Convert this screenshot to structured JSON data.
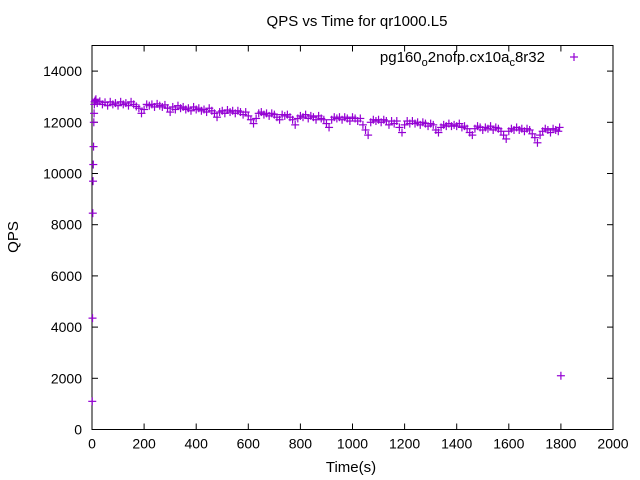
{
  "chart_data": {
    "type": "scatter",
    "title": "QPS vs Time for qr1000.L5",
    "xlabel": "Time(s)",
    "ylabel": "QPS",
    "xlim": [
      0,
      2000
    ],
    "ylim": [
      0,
      15000
    ],
    "xticks": [
      0,
      200,
      400,
      600,
      800,
      1000,
      1200,
      1400,
      1600,
      1800,
      2000
    ],
    "yticks": [
      0,
      2000,
      4000,
      6000,
      8000,
      10000,
      12000,
      14000
    ],
    "grid": false,
    "legend": {
      "placement": "top-right",
      "label_main": "pg160",
      "sub1": "o",
      "mid": "2nofp.cx10a",
      "sub2": "c",
      "tail": "8r32"
    },
    "series": [
      {
        "name": "pg160_o2nofp.cx10a_c8r32",
        "color": "#9400d3",
        "marker": "+",
        "points": [
          [
            1,
            1100
          ],
          [
            2,
            4350
          ],
          [
            3,
            8450
          ],
          [
            4,
            9700
          ],
          [
            5,
            10350
          ],
          [
            6,
            11050
          ],
          [
            7,
            12000
          ],
          [
            8,
            12350
          ],
          [
            9,
            12700
          ],
          [
            10,
            12800
          ],
          [
            12,
            12850
          ],
          [
            15,
            12900
          ],
          [
            20,
            12750
          ],
          [
            30,
            12820
          ],
          [
            40,
            12700
          ],
          [
            50,
            12780
          ],
          [
            60,
            12650
          ],
          [
            70,
            12800
          ],
          [
            80,
            12700
          ],
          [
            90,
            12750
          ],
          [
            100,
            12650
          ],
          [
            110,
            12800
          ],
          [
            120,
            12700
          ],
          [
            130,
            12750
          ],
          [
            140,
            12650
          ],
          [
            150,
            12800
          ],
          [
            160,
            12700
          ],
          [
            170,
            12620
          ],
          [
            180,
            12550
          ],
          [
            190,
            12350
          ],
          [
            200,
            12500
          ],
          [
            210,
            12700
          ],
          [
            220,
            12650
          ],
          [
            230,
            12700
          ],
          [
            240,
            12600
          ],
          [
            250,
            12720
          ],
          [
            260,
            12650
          ],
          [
            270,
            12600
          ],
          [
            280,
            12680
          ],
          [
            290,
            12550
          ],
          [
            300,
            12400
          ],
          [
            310,
            12600
          ],
          [
            320,
            12500
          ],
          [
            330,
            12650
          ],
          [
            340,
            12550
          ],
          [
            350,
            12600
          ],
          [
            360,
            12500
          ],
          [
            370,
            12550
          ],
          [
            380,
            12450
          ],
          [
            390,
            12600
          ],
          [
            400,
            12500
          ],
          [
            410,
            12550
          ],
          [
            420,
            12450
          ],
          [
            430,
            12500
          ],
          [
            440,
            12400
          ],
          [
            450,
            12550
          ],
          [
            460,
            12450
          ],
          [
            470,
            12350
          ],
          [
            480,
            12200
          ],
          [
            490,
            12400
          ],
          [
            500,
            12450
          ],
          [
            510,
            12350
          ],
          [
            520,
            12480
          ],
          [
            530,
            12400
          ],
          [
            540,
            12450
          ],
          [
            550,
            12350
          ],
          [
            560,
            12450
          ],
          [
            570,
            12400
          ],
          [
            580,
            12300
          ],
          [
            590,
            12400
          ],
          [
            600,
            12250
          ],
          [
            610,
            12100
          ],
          [
            620,
            11950
          ],
          [
            630,
            12150
          ],
          [
            640,
            12350
          ],
          [
            650,
            12400
          ],
          [
            660,
            12300
          ],
          [
            670,
            12350
          ],
          [
            680,
            12250
          ],
          [
            690,
            12350
          ],
          [
            700,
            12300
          ],
          [
            710,
            12200
          ],
          [
            720,
            12100
          ],
          [
            730,
            12300
          ],
          [
            740,
            12250
          ],
          [
            750,
            12300
          ],
          [
            760,
            12200
          ],
          [
            770,
            12100
          ],
          [
            780,
            11900
          ],
          [
            790,
            12150
          ],
          [
            800,
            12250
          ],
          [
            810,
            12200
          ],
          [
            820,
            12300
          ],
          [
            830,
            12150
          ],
          [
            840,
            12250
          ],
          [
            850,
            12200
          ],
          [
            860,
            12100
          ],
          [
            870,
            12250
          ],
          [
            880,
            12150
          ],
          [
            890,
            12100
          ],
          [
            900,
            11950
          ],
          [
            910,
            11800
          ],
          [
            920,
            12100
          ],
          [
            930,
            12200
          ],
          [
            940,
            12150
          ],
          [
            950,
            12200
          ],
          [
            960,
            12100
          ],
          [
            970,
            12200
          ],
          [
            980,
            12150
          ],
          [
            990,
            12050
          ],
          [
            1000,
            12200
          ],
          [
            1010,
            12150
          ],
          [
            1020,
            12050
          ],
          [
            1030,
            12150
          ],
          [
            1040,
            11900
          ],
          [
            1050,
            11700
          ],
          [
            1060,
            11500
          ],
          [
            1070,
            12000
          ],
          [
            1080,
            12100
          ],
          [
            1090,
            12050
          ],
          [
            1100,
            12100
          ],
          [
            1110,
            12000
          ],
          [
            1120,
            12100
          ],
          [
            1130,
            12050
          ],
          [
            1140,
            11900
          ],
          [
            1150,
            12050
          ],
          [
            1160,
            11950
          ],
          [
            1170,
            12050
          ],
          [
            1180,
            11800
          ],
          [
            1190,
            11600
          ],
          [
            1200,
            11900
          ],
          [
            1210,
            12050
          ],
          [
            1220,
            11950
          ],
          [
            1230,
            12050
          ],
          [
            1240,
            11950
          ],
          [
            1250,
            12000
          ],
          [
            1260,
            11900
          ],
          [
            1270,
            12000
          ],
          [
            1280,
            11950
          ],
          [
            1290,
            11850
          ],
          [
            1300,
            11950
          ],
          [
            1310,
            11900
          ],
          [
            1320,
            11700
          ],
          [
            1330,
            11600
          ],
          [
            1340,
            11800
          ],
          [
            1350,
            11900
          ],
          [
            1360,
            11850
          ],
          [
            1370,
            11950
          ],
          [
            1380,
            11850
          ],
          [
            1390,
            11900
          ],
          [
            1400,
            11850
          ],
          [
            1410,
            11950
          ],
          [
            1420,
            11800
          ],
          [
            1430,
            11850
          ],
          [
            1440,
            11750
          ],
          [
            1450,
            11600
          ],
          [
            1460,
            11500
          ],
          [
            1470,
            11750
          ],
          [
            1480,
            11850
          ],
          [
            1490,
            11800
          ],
          [
            1500,
            11700
          ],
          [
            1510,
            11800
          ],
          [
            1520,
            11750
          ],
          [
            1530,
            11850
          ],
          [
            1540,
            11700
          ],
          [
            1550,
            11800
          ],
          [
            1560,
            11750
          ],
          [
            1570,
            11650
          ],
          [
            1580,
            11500
          ],
          [
            1590,
            11350
          ],
          [
            1600,
            11650
          ],
          [
            1610,
            11750
          ],
          [
            1620,
            11700
          ],
          [
            1630,
            11800
          ],
          [
            1640,
            11700
          ],
          [
            1650,
            11750
          ],
          [
            1660,
            11650
          ],
          [
            1670,
            11750
          ],
          [
            1680,
            11700
          ],
          [
            1690,
            11550
          ],
          [
            1700,
            11400
          ],
          [
            1710,
            11200
          ],
          [
            1720,
            11500
          ],
          [
            1730,
            11650
          ],
          [
            1740,
            11750
          ],
          [
            1750,
            11700
          ],
          [
            1760,
            11600
          ],
          [
            1770,
            11750
          ],
          [
            1780,
            11700
          ],
          [
            1790,
            11650
          ],
          [
            1795,
            11800
          ],
          [
            1800,
            2100
          ]
        ]
      }
    ]
  }
}
